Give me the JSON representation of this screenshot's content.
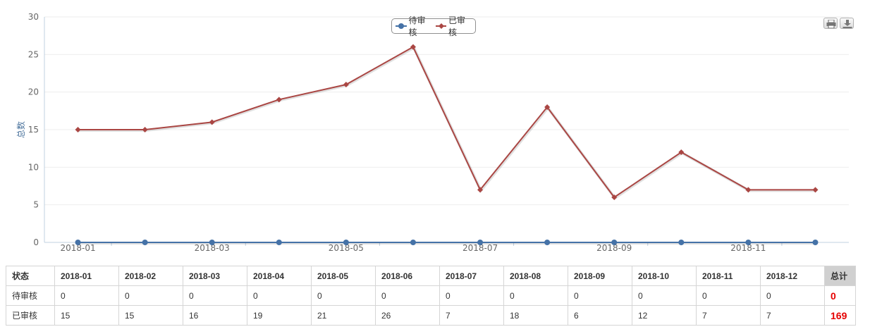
{
  "chart_data": {
    "type": "line",
    "title": "",
    "xlabel": "",
    "ylabel": "总数",
    "ylim": [
      0,
      30
    ],
    "yticks": [
      0,
      5,
      10,
      15,
      20,
      25,
      30
    ],
    "categories": [
      "2018-01",
      "2018-02",
      "2018-03",
      "2018-04",
      "2018-05",
      "2018-06",
      "2018-07",
      "2018-08",
      "2018-09",
      "2018-10",
      "2018-11",
      "2018-12"
    ],
    "x_tick_labels": [
      "2018-01",
      "2018-03",
      "2018-05",
      "2018-07",
      "2018-09",
      "2018-11"
    ],
    "series": [
      {
        "name": "待审核",
        "color": "#4572A7",
        "marker": "circle",
        "values": [
          0,
          0,
          0,
          0,
          0,
          0,
          0,
          0,
          0,
          0,
          0,
          0
        ]
      },
      {
        "name": "已审核",
        "color": "#AA4643",
        "marker": "diamond",
        "values": [
          15,
          15,
          16,
          19,
          21,
          26,
          7,
          18,
          6,
          12,
          7,
          7
        ]
      }
    ],
    "legend_position": "top-center",
    "grid": true
  },
  "toolbar": {
    "print_icon": "print-icon",
    "export_icon": "download-icon"
  },
  "table": {
    "header": [
      "状态",
      "2018-01",
      "2018-02",
      "2018-03",
      "2018-04",
      "2018-05",
      "2018-06",
      "2018-07",
      "2018-08",
      "2018-09",
      "2018-10",
      "2018-11",
      "2018-12",
      "总计"
    ],
    "rows": [
      {
        "label": "待审核",
        "values": [
          "0",
          "0",
          "0",
          "0",
          "0",
          "0",
          "0",
          "0",
          "0",
          "0",
          "0",
          "0"
        ],
        "total": "0"
      },
      {
        "label": "已审核",
        "values": [
          "15",
          "15",
          "16",
          "19",
          "21",
          "26",
          "7",
          "18",
          "6",
          "12",
          "7",
          "7"
        ],
        "total": "169"
      }
    ],
    "total_color": "#e60000"
  }
}
